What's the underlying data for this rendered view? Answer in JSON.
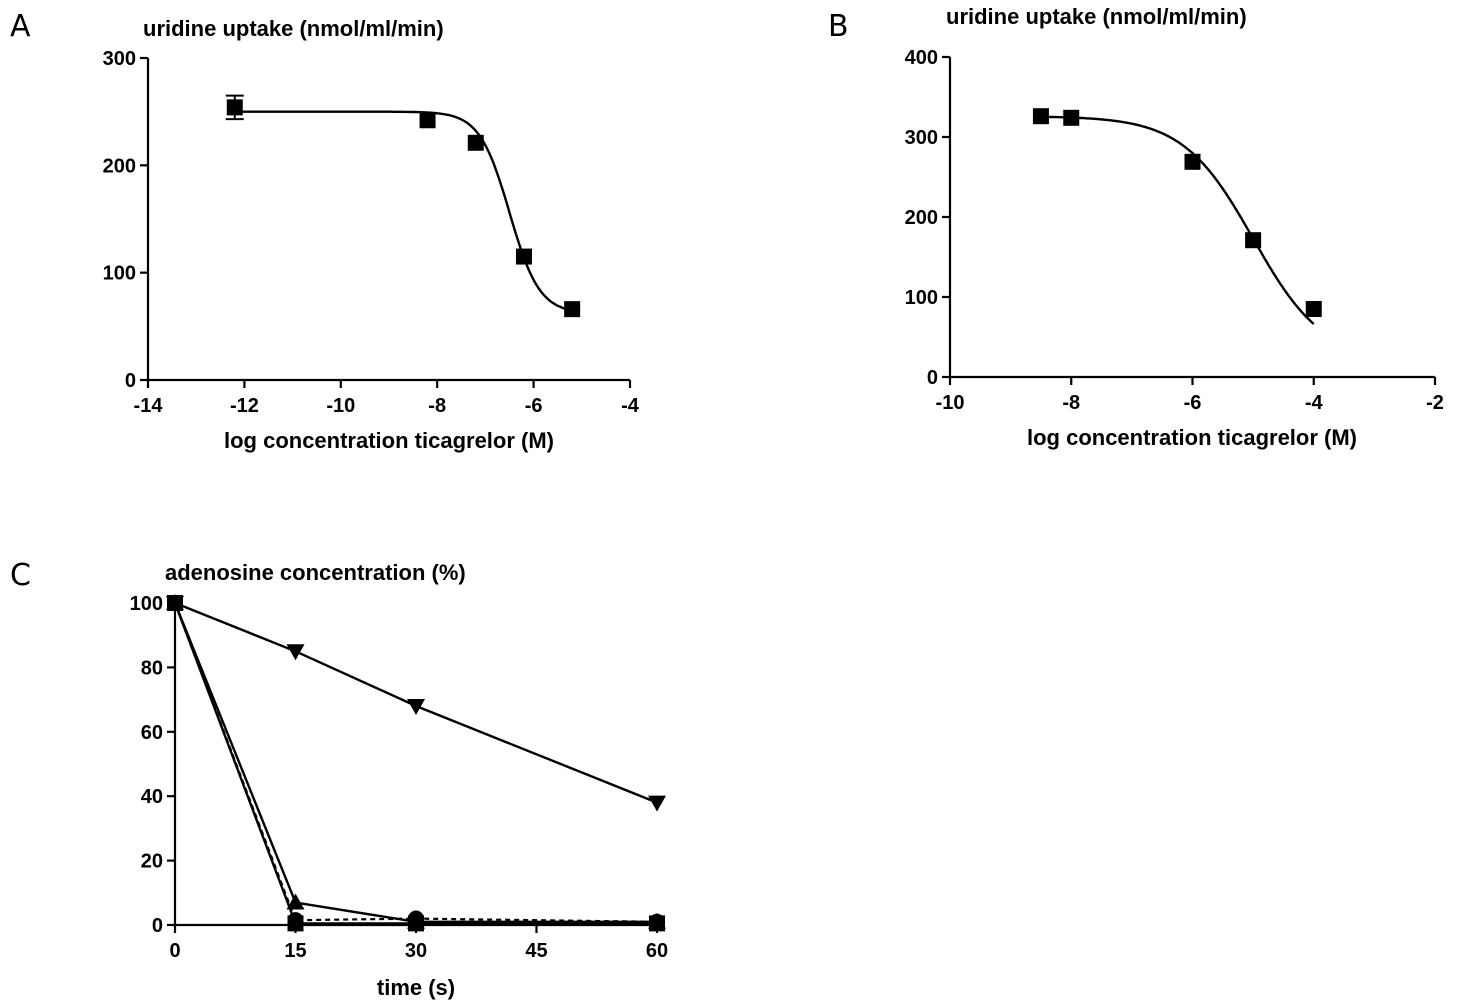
{
  "chart_data": [
    {
      "panel": "A",
      "type": "scatter",
      "title": "uridine uptake (nmol/ml/min)",
      "xlabel": "log concentration ticagrelor (M)",
      "ylabel": "",
      "xlim": [
        -14,
        -4
      ],
      "ylim": [
        0,
        300
      ],
      "xticks": [
        -14,
        -12,
        -10,
        -8,
        -6,
        -4
      ],
      "yticks": [
        0,
        100,
        200,
        300
      ],
      "series": [
        {
          "marker": "square",
          "x": [
            -12.2,
            -8.2,
            -7.2,
            -6.2,
            -5.2
          ],
          "y": [
            254,
            242,
            221,
            115,
            66
          ],
          "yerr": [
            11,
            0,
            0,
            0,
            0
          ]
        }
      ],
      "fit": {
        "top": 250,
        "bottom": 62,
        "logIC50": -6.5,
        "hill": 1.4
      }
    },
    {
      "panel": "B",
      "type": "scatter",
      "title": "uridine uptake  (nmol/ml/min)",
      "xlabel": "log concentration ticagrelor (M)",
      "ylabel": "",
      "xlim": [
        -10,
        -2
      ],
      "ylim": [
        0,
        400
      ],
      "xticks": [
        -10,
        -8,
        -6,
        -4,
        -2
      ],
      "yticks": [
        0,
        100,
        200,
        300,
        400
      ],
      "series": [
        {
          "marker": "square",
          "x": [
            -8.5,
            -8.0,
            -6.0,
            -5.0,
            -4.0
          ],
          "y": [
            326,
            324,
            269,
            171,
            85
          ]
        }
      ],
      "fit": {
        "top": 326,
        "bottom": 20,
        "logIC50": -5.0,
        "hill": 0.75
      }
    },
    {
      "panel": "C",
      "type": "line",
      "title": "adenosine concentration (%)",
      "xlabel": "time  (s)",
      "ylabel": "",
      "xlim": [
        0,
        60
      ],
      "ylim": [
        0,
        100
      ],
      "xticks": [
        0,
        15,
        30,
        45,
        60
      ],
      "yticks": [
        0,
        20,
        40,
        60,
        80,
        100
      ],
      "x": [
        0,
        15,
        30,
        60
      ],
      "series": [
        {
          "marker": "triangle-down",
          "style": "solid",
          "values": [
            100,
            85,
            68,
            38
          ]
        },
        {
          "marker": "triangle-up",
          "style": "solid",
          "values": [
            100,
            7,
            1,
            1
          ]
        },
        {
          "marker": "square",
          "style": "solid",
          "values": [
            100,
            0.5,
            0.5,
            0.5
          ]
        },
        {
          "marker": "circle",
          "style": "dashed",
          "values": [
            100,
            1.5,
            2,
            1
          ]
        }
      ]
    }
  ]
}
